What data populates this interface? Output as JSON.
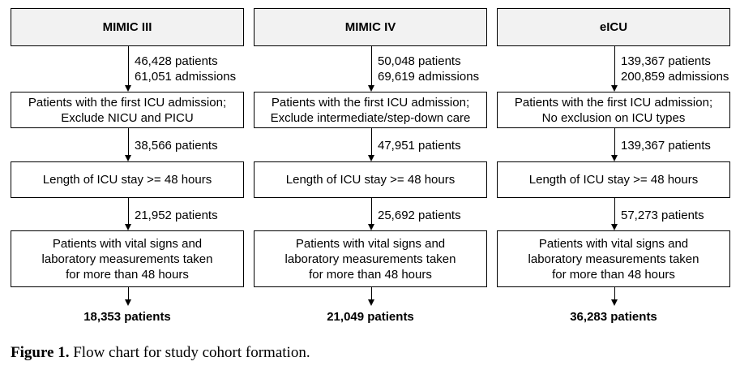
{
  "columns": [
    {
      "title": "MIMIC III",
      "count1": [
        "46,428 patients",
        "61,051 admissions"
      ],
      "step1": [
        "Patients with the first ICU admission;",
        "Exclude NICU and PICU"
      ],
      "count2": "38,566 patients",
      "step2": "Length of ICU stay >= 48 hours",
      "count3": "21,952 patients",
      "step3": [
        "Patients with vital signs and",
        "laboratory measurements taken",
        "for more than 48 hours"
      ],
      "final": "18,353 patients"
    },
    {
      "title": "MIMIC IV",
      "count1": [
        "50,048 patients",
        "69,619 admissions"
      ],
      "step1": [
        "Patients with the first ICU admission;",
        "Exclude intermediate/step-down care"
      ],
      "count2": "47,951 patients",
      "step2": "Length of ICU stay >= 48 hours",
      "count3": "25,692 patients",
      "step3": [
        "Patients with vital signs and",
        "laboratory measurements taken",
        "for more than 48 hours"
      ],
      "final": "21,049 patients"
    },
    {
      "title": "eICU",
      "count1": [
        "139,367 patients",
        "200,859 admissions"
      ],
      "step1": [
        "Patients with the first ICU admission;",
        "No exclusion on ICU types"
      ],
      "count2": "139,367 patients",
      "step2": "Length of ICU stay >= 48 hours",
      "count3": "57,273 patients",
      "step3": [
        "Patients with vital signs and",
        "laboratory measurements taken",
        "for more than 48 hours"
      ],
      "final": "36,283 patients"
    }
  ],
  "caption": {
    "label": "Figure 1.",
    "text": " Flow chart for study cohort formation."
  }
}
